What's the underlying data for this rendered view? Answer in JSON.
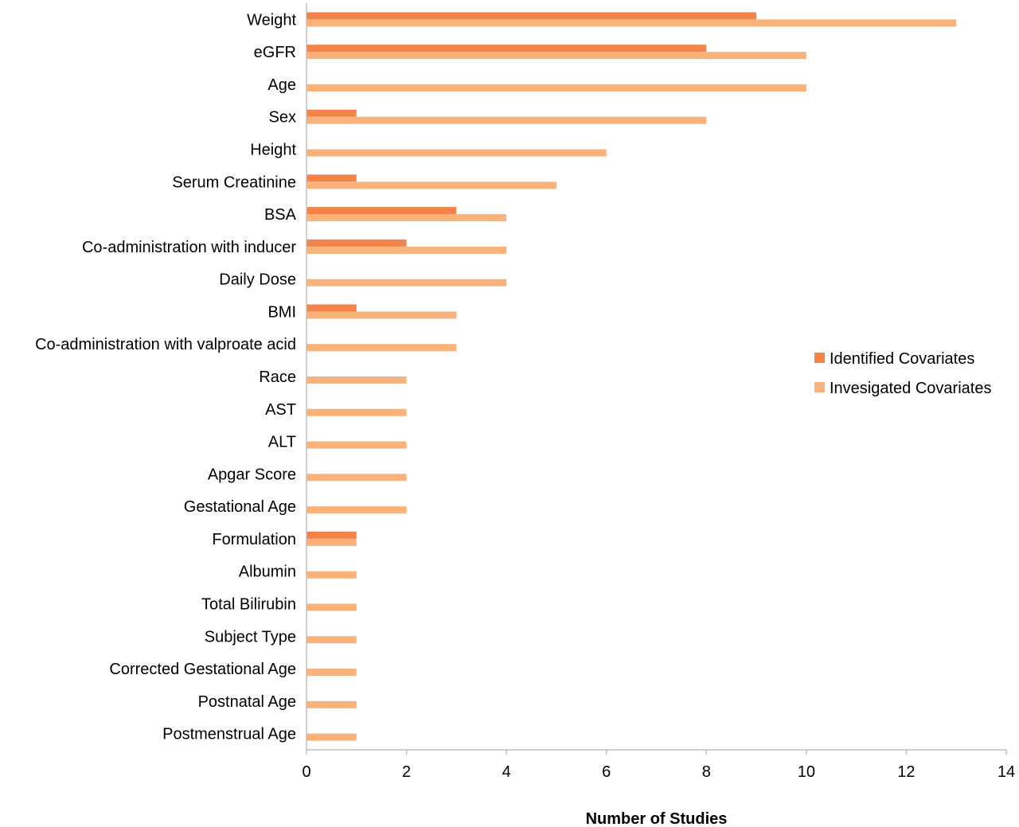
{
  "chart_data": {
    "type": "bar",
    "orientation": "horizontal",
    "title": "",
    "xlabel": "Number of Studies",
    "ylabel": "",
    "xlim": [
      0,
      14
    ],
    "x_ticks": [
      0,
      2,
      4,
      6,
      8,
      10,
      12,
      14
    ],
    "grid": false,
    "legend_position": "right",
    "categories": [
      "Weight",
      "eGFR",
      "Age",
      "Sex",
      "Height",
      "Serum Creatinine",
      "BSA",
      "Co-administration with inducer",
      "Daily Dose",
      "BMI",
      "Co-administration with valproate acid",
      "Race",
      "AST",
      "ALT",
      "Apgar Score",
      "Gestational Age",
      "Formulation",
      "Albumin",
      "Total Bilirubin",
      "Subject Type",
      "Corrected Gestational Age",
      "Postnatal Age",
      "Postmenstrual Age"
    ],
    "series": [
      {
        "name": "Identified Covariates",
        "color": "#f4834a",
        "values": [
          9,
          8,
          0,
          1,
          0,
          1,
          3,
          2,
          0,
          1,
          0,
          0,
          0,
          0,
          0,
          0,
          1,
          0,
          0,
          0,
          0,
          0,
          0
        ]
      },
      {
        "name": "Invesigated Covariates",
        "color": "#f9b27a",
        "values": [
          13,
          10,
          10,
          8,
          6,
          5,
          4,
          4,
          4,
          3,
          3,
          2,
          2,
          2,
          2,
          2,
          1,
          1,
          1,
          1,
          1,
          1,
          1
        ]
      }
    ]
  }
}
